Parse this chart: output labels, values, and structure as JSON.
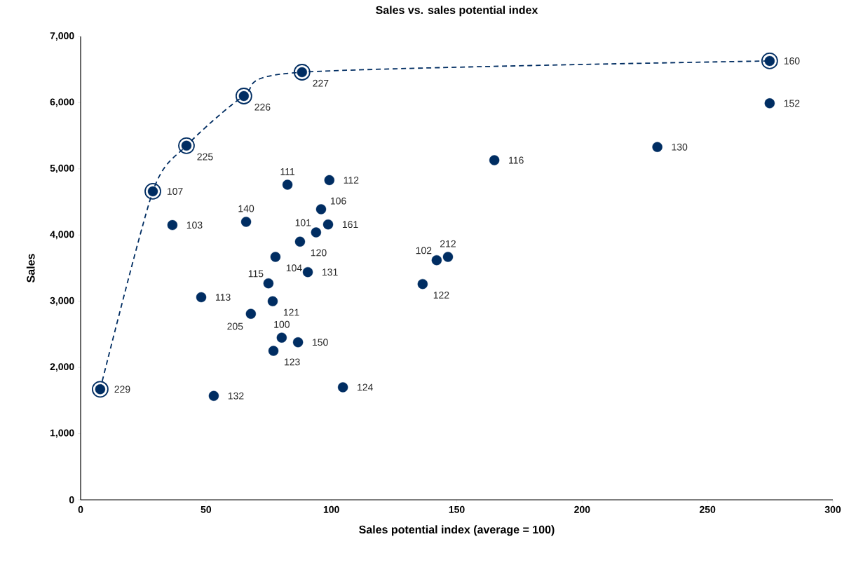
{
  "chart_data": {
    "type": "scatter",
    "title": "Sales vs. sales potential index",
    "xlabel": "Sales potential index (average = 100)",
    "ylabel": "Sales",
    "xlim": [
      0,
      300
    ],
    "xticks": [
      0,
      50,
      100,
      150,
      200,
      250,
      300
    ],
    "ylim": [
      0,
      7000
    ],
    "yticks": [
      0,
      {
        "value": 1000,
        "label": "1,000"
      },
      {
        "value": 2000,
        "label": "2,000"
      },
      {
        "value": 3000,
        "label": "3,000"
      },
      {
        "value": 4000,
        "label": "4,000"
      },
      {
        "value": 5000,
        "label": "5,000"
      },
      {
        "value": 6000,
        "label": "6,000"
      },
      {
        "value": 7000,
        "label": "7,000"
      }
    ],
    "series": [
      {
        "color": "#002d62",
        "marker": "circle",
        "x": [
          7.8,
          28.8,
          42.2,
          65.1,
          88.3,
          274.8,
          274.8,
          230,
          165,
          99.2,
          82.5,
          95.9,
          66,
          36.6,
          98.7,
          93.9,
          87.5,
          77.7,
          146.5,
          142,
          90.6,
          74.9,
          136.4,
          48.1,
          76.6,
          67.9,
          80.2,
          86.7,
          76.9,
          104.6,
          53.1
        ],
        "values": [
          1670,
          4660,
          5350,
          6100,
          6460,
          6630,
          5990,
          5330,
          5130,
          4830,
          4760,
          4390,
          4200,
          4150,
          4160,
          4040,
          3900,
          3670,
          3670,
          3620,
          3440,
          3270,
          3260,
          3060,
          3000,
          2810,
          2450,
          2380,
          2250,
          1700,
          1570
        ]
      },
      {
        "type": "line",
        "color": "#002d62",
        "marker": "circle",
        "line_style": "dashed",
        "x": [
          7.8,
          28.8,
          42.2,
          65.1,
          88.3,
          274.8
        ],
        "values": [
          1670,
          4660,
          5350,
          6100,
          6460,
          6630
        ]
      }
    ],
    "annotations": [
      {
        "text": "229",
        "x": 7.8,
        "y": 1670
      },
      {
        "text": "107",
        "x": 28.8,
        "y": 4660
      },
      {
        "text": "225",
        "x": 42.2,
        "y": 5350
      },
      {
        "text": "226",
        "x": 65.1,
        "y": 6100
      },
      {
        "text": "227",
        "x": 88.3,
        "y": 6460
      },
      {
        "text": "160",
        "x": 274.8,
        "y": 6630
      },
      {
        "text": "152",
        "x": 274.8,
        "y": 5990
      },
      {
        "text": "130",
        "x": 230,
        "y": 5330
      },
      {
        "text": "116",
        "x": 165,
        "y": 5130
      },
      {
        "text": "112",
        "x": 99.2,
        "y": 4830
      },
      {
        "text": "111",
        "x": 82.5,
        "y": 4760
      },
      {
        "text": "106",
        "x": 95.9,
        "y": 4390
      },
      {
        "text": "140",
        "x": 66,
        "y": 4200
      },
      {
        "text": "103",
        "x": 36.6,
        "y": 4150
      },
      {
        "text": "161",
        "x": 98.7,
        "y": 4160
      },
      {
        "text": "101",
        "x": 93.9,
        "y": 4040
      },
      {
        "text": "120",
        "x": 87.5,
        "y": 3900
      },
      {
        "text": "104",
        "x": 77.7,
        "y": 3670
      },
      {
        "text": "212",
        "x": 146.5,
        "y": 3670
      },
      {
        "text": "102",
        "x": 142,
        "y": 3620
      },
      {
        "text": "131",
        "x": 90.6,
        "y": 3440
      },
      {
        "text": "115",
        "x": 74.9,
        "y": 3270
      },
      {
        "text": "122",
        "x": 136.4,
        "y": 3260
      },
      {
        "text": "113",
        "x": 48.1,
        "y": 3060
      },
      {
        "text": "121",
        "x": 76.6,
        "y": 3000
      },
      {
        "text": "205",
        "x": 67.9,
        "y": 2810
      },
      {
        "text": "100",
        "x": 80.2,
        "y": 2450
      },
      {
        "text": "150",
        "x": 86.7,
        "y": 2380
      },
      {
        "text": "123",
        "x": 76.9,
        "y": 2250
      },
      {
        "text": "124",
        "x": 104.6,
        "y": 1700
      },
      {
        "text": "132",
        "x": 53.1,
        "y": 1570
      }
    ]
  }
}
